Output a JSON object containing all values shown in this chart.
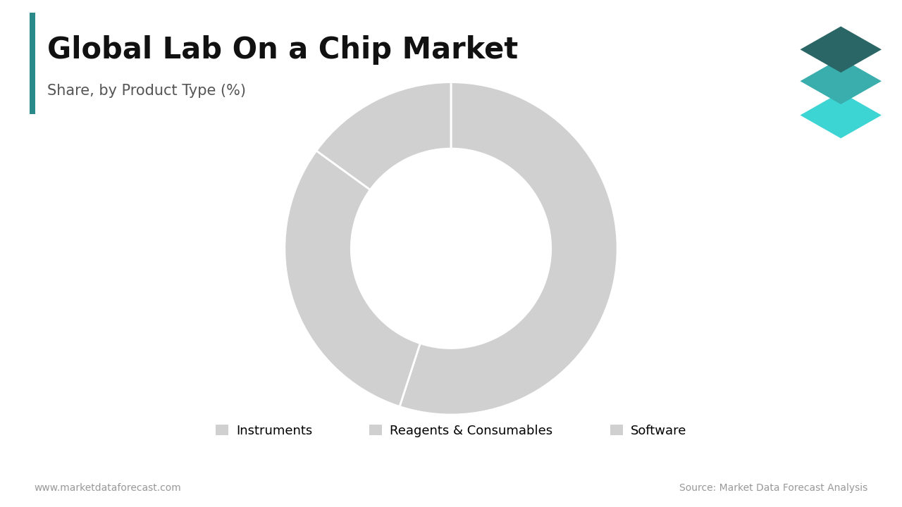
{
  "title": "Global Lab On a Chip Market",
  "subtitle": "Share, by Product Type (%)",
  "segments": [
    {
      "label": "Instruments",
      "value": 55
    },
    {
      "label": "Reagents & Consumables",
      "value": 30
    },
    {
      "label": "Software",
      "value": 15
    }
  ],
  "pie_color": "#d0d0d0",
  "wedge_edge_color": "#ffffff",
  "background_color": "#ffffff",
  "title_fontsize": 30,
  "subtitle_fontsize": 15,
  "legend_fontsize": 13,
  "footer_left": "www.marketdataforecast.com",
  "footer_right": "Source: Market Data Forecast Analysis",
  "footer_fontsize": 10,
  "accent_bar_color": "#2a8a8a",
  "title_color": "#111111",
  "subtitle_color": "#555555",
  "logo_colors": [
    "#2a6666",
    "#3aadad",
    "#3dd4d4"
  ]
}
